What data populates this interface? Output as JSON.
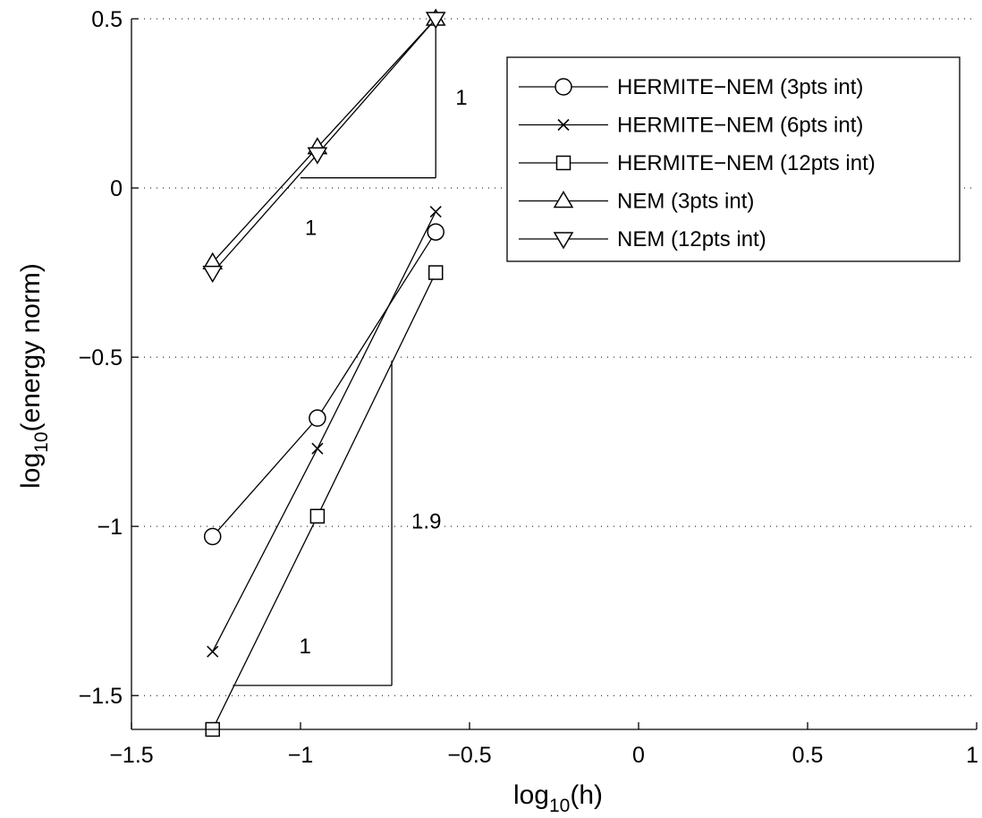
{
  "chart_data": {
    "type": "line",
    "xlabel": {
      "prefix": "log",
      "sub": "10",
      "suffix": "(h)"
    },
    "ylabel": {
      "prefix": "log",
      "sub": "10",
      "suffix": "(energy norm)"
    },
    "xlim": [
      -1.5,
      1
    ],
    "ylim": [
      -1.6,
      0.5
    ],
    "xticks": [
      -1.5,
      -1,
      -0.5,
      0,
      0.5,
      1
    ],
    "xtick_labels": [
      "−1.5",
      "−1",
      "−0.5",
      "0",
      "0.5",
      "1"
    ],
    "yticks": [
      -1.5,
      -1,
      -0.5,
      0,
      0.5
    ],
    "ytick_labels": [
      "−1.5",
      "−1",
      "−0.5",
      "0",
      "0.5"
    ],
    "grid": "horizontal dotted",
    "legend_position": "top-right",
    "series": [
      {
        "name": "HERMITE−NEM (3pts int)",
        "marker": "circle",
        "x": [
          -1.26,
          -0.95,
          -0.6
        ],
        "y": [
          -1.03,
          -0.68,
          -0.13
        ]
      },
      {
        "name": "HERMITE−NEM (6pts int)",
        "marker": "x",
        "x": [
          -1.26,
          -0.95,
          -0.6
        ],
        "y": [
          -1.37,
          -0.77,
          -0.07
        ]
      },
      {
        "name": "HERMITE−NEM (12pts int)",
        "marker": "square",
        "x": [
          -1.26,
          -0.95,
          -0.6
        ],
        "y": [
          -1.6,
          -0.97,
          -0.25
        ]
      },
      {
        "name": "NEM (3pts int)",
        "marker": "triangle-up",
        "x": [
          -1.26,
          -0.95,
          -0.6
        ],
        "y": [
          -0.22,
          0.12,
          0.5
        ]
      },
      {
        "name": "NEM (12pts int)",
        "marker": "triangle-down",
        "x": [
          -1.26,
          -0.95,
          -0.6
        ],
        "y": [
          -0.25,
          0.1,
          0.5
        ]
      }
    ],
    "slope_triangles": [
      {
        "corner": [
          -0.6,
          0.03
        ],
        "start_x": -1.0,
        "top_y": 0.5,
        "vertical_label": "1",
        "horizontal_label": "1"
      },
      {
        "corner": [
          -0.73,
          -1.47
        ],
        "start_x": -1.2,
        "top_y": -0.51,
        "vertical_label": "1.9",
        "horizontal_label": "1"
      }
    ]
  }
}
